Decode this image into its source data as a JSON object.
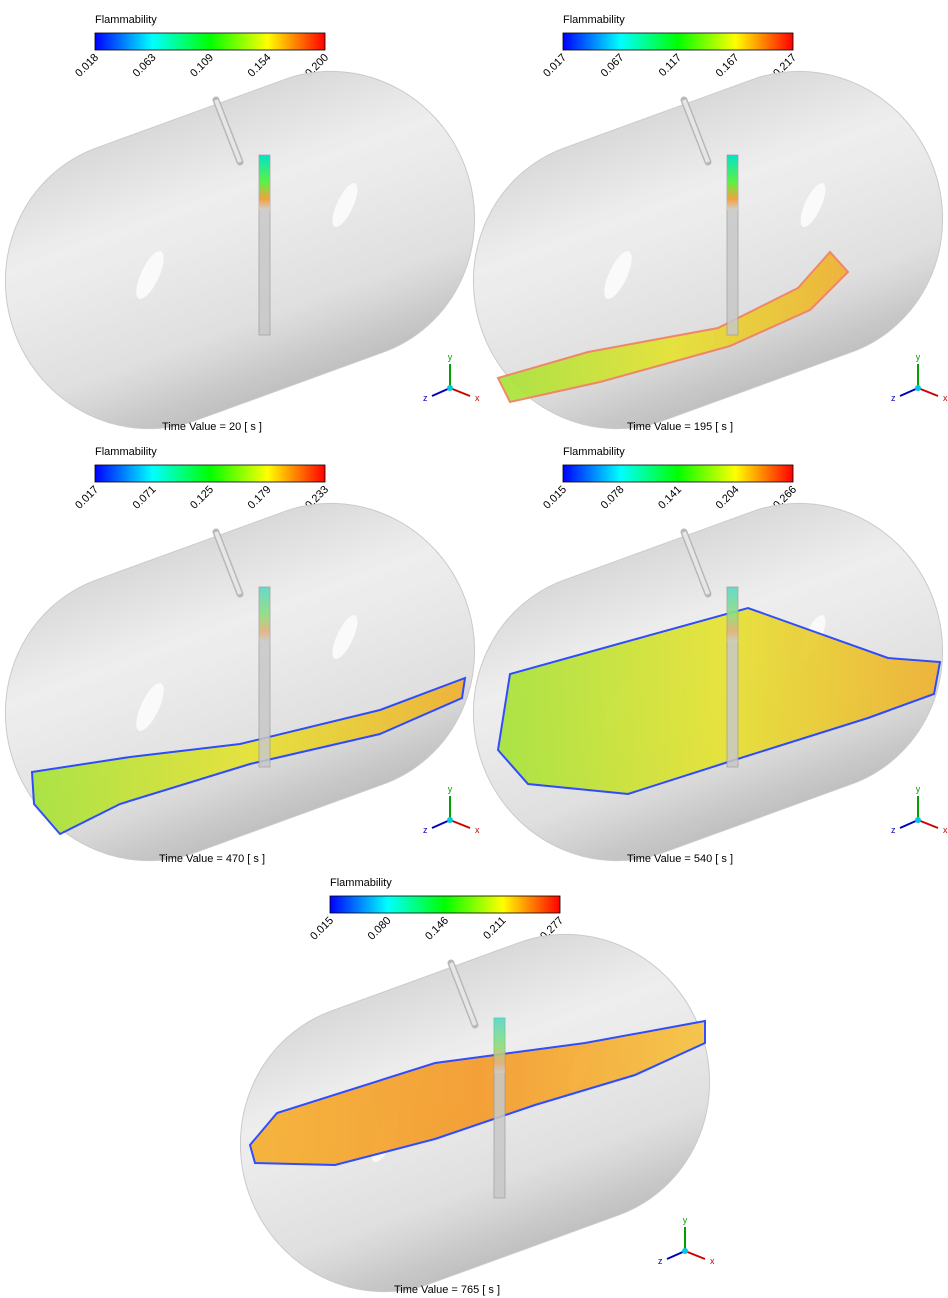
{
  "panels": [
    {
      "legend_title": "Flammability",
      "ticks": [
        "0.018",
        "0.063",
        "0.109",
        "0.154",
        "0.200"
      ],
      "time_label": "Time Value = 20 [ s ]",
      "axes": {
        "x": "x",
        "y": "y",
        "z": "z"
      }
    },
    {
      "legend_title": "Flammability",
      "ticks": [
        "0.017",
        "0.067",
        "0.117",
        "0.167",
        "0.217"
      ],
      "time_label": "Time Value = 195 [ s ]",
      "axes": {
        "x": "x",
        "y": "y",
        "z": "z"
      }
    },
    {
      "legend_title": "Flammability",
      "ticks": [
        "0.017",
        "0.071",
        "0.125",
        "0.179",
        "0.233"
      ],
      "time_label": "Time Value = 470 [ s ]",
      "axes": {
        "x": "x",
        "y": "y",
        "z": "z"
      }
    },
    {
      "legend_title": "Flammability",
      "ticks": [
        "0.015",
        "0.078",
        "0.141",
        "0.204",
        "0.266"
      ],
      "time_label": "Time Value = 540 [ s ]",
      "axes": {
        "x": "x",
        "y": "y",
        "z": "z"
      }
    },
    {
      "legend_title": "Flammability",
      "ticks": [
        "0.015",
        "0.080",
        "0.146",
        "0.211",
        "0.277"
      ],
      "time_label": "Time Value = 765 [ s ]",
      "axes": {
        "x": "x",
        "y": "y",
        "z": "z"
      }
    }
  ]
}
